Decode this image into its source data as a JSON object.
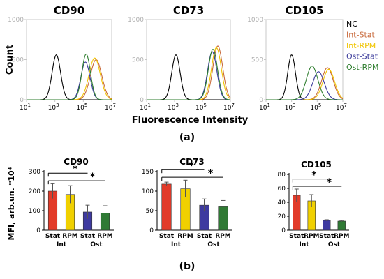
{
  "panel_labels": {
    "a": "(a)",
    "b": "(b)"
  },
  "colors": {
    "NC": "#000000",
    "Int-Stat": "#c8693a",
    "Int-RPM": "#f0c400",
    "Ost-Stat": "#3a3a9a",
    "Ost-RPM": "#2e7d2e",
    "bar_int_stat": "#e23b2a",
    "bar_int_rpm": "#f0d000",
    "bar_ost_stat": "#3e3aa0",
    "bar_ost_rpm": "#2f7a34"
  },
  "legend": [
    "NC",
    "Int-Stat",
    "Int-RPM",
    "Ost-Stat",
    "Ost-RPM"
  ],
  "chart_data": [
    {
      "type": "line",
      "title": "CD90",
      "xlabel": "",
      "ylabel": "Count",
      "xscale": "log",
      "xlim": [
        1,
        7
      ],
      "ylim": [
        0,
        1000
      ],
      "xticks": [
        {
          "b": "10",
          "e": "1"
        },
        {
          "b": "10",
          "e": "3"
        },
        {
          "b": "10",
          "e": "5"
        },
        {
          "b": "10",
          "e": "7"
        }
      ],
      "yticks": [
        "0",
        "500",
        "1000"
      ],
      "series": [
        {
          "name": "NC",
          "mu": 3.1,
          "sigma": 0.3,
          "peak": 560
        },
        {
          "name": "Int-Stat",
          "mu": 5.9,
          "sigma": 0.4,
          "peak": 500
        },
        {
          "name": "Int-RPM",
          "mu": 5.8,
          "sigma": 0.4,
          "peak": 520
        },
        {
          "name": "Ost-Stat",
          "mu": 5.15,
          "sigma": 0.32,
          "peak": 470
        },
        {
          "name": "Ost-RPM",
          "mu": 5.2,
          "sigma": 0.3,
          "peak": 570
        }
      ]
    },
    {
      "type": "line",
      "title": "CD73",
      "xlabel": "Fluorescence Intensity",
      "ylabel": "",
      "xscale": "log",
      "xlim": [
        1,
        7
      ],
      "ylim": [
        0,
        1000
      ],
      "xticks": [
        {
          "b": "10",
          "e": "1"
        },
        {
          "b": "10",
          "e": "3"
        },
        {
          "b": "10",
          "e": "5"
        },
        {
          "b": "10",
          "e": "7"
        }
      ],
      "yticks": [
        "0",
        "500",
        "1000"
      ],
      "series": [
        {
          "name": "NC",
          "mu": 3.1,
          "sigma": 0.3,
          "peak": 560
        },
        {
          "name": "Int-Stat",
          "mu": 6.1,
          "sigma": 0.35,
          "peak": 670
        },
        {
          "name": "Int-RPM",
          "mu": 6.0,
          "sigma": 0.35,
          "peak": 650
        },
        {
          "name": "Ost-Stat",
          "mu": 5.7,
          "sigma": 0.33,
          "peak": 600
        },
        {
          "name": "Ost-RPM",
          "mu": 5.75,
          "sigma": 0.33,
          "peak": 630
        }
      ]
    },
    {
      "type": "line",
      "title": "CD105",
      "xlabel": "",
      "ylabel": "",
      "xscale": "log",
      "xlim": [
        1,
        7
      ],
      "ylim": [
        0,
        1000
      ],
      "xticks": [
        {
          "b": "10",
          "e": "1"
        },
        {
          "b": "10",
          "e": "3"
        },
        {
          "b": "10",
          "e": "5"
        },
        {
          "b": "10",
          "e": "7"
        }
      ],
      "yticks": [
        "0",
        "500",
        "1000"
      ],
      "series": [
        {
          "name": "NC",
          "mu": 3.0,
          "sigma": 0.3,
          "peak": 560
        },
        {
          "name": "Int-Stat",
          "mu": 5.8,
          "sigma": 0.45,
          "peak": 400
        },
        {
          "name": "Int-RPM",
          "mu": 5.9,
          "sigma": 0.45,
          "peak": 380
        },
        {
          "name": "Ost-Stat",
          "mu": 5.1,
          "sigma": 0.45,
          "peak": 350
        },
        {
          "name": "Ost-RPM",
          "mu": 4.6,
          "sigma": 0.45,
          "peak": 420
        }
      ]
    },
    {
      "type": "bar",
      "title": "CD90",
      "ylabel": "MFI, arb.un. *10⁴",
      "ylim": [
        0,
        300
      ],
      "yticks": [
        "0",
        "100",
        "200",
        "300"
      ],
      "categories": [
        "Stat",
        "RPM",
        "Stat",
        "RPM"
      ],
      "groups": [
        "Int",
        "Ost"
      ],
      "values": [
        200,
        183,
        93,
        88
      ],
      "errors": [
        38,
        45,
        35,
        37
      ],
      "significance": [
        {
          "from": 0,
          "to": 2,
          "label": "*"
        },
        {
          "from": 0,
          "to": 3,
          "label": "*"
        }
      ]
    },
    {
      "type": "bar",
      "title": "CD73",
      "ylabel": "",
      "ylim": [
        0,
        150
      ],
      "yticks": [
        "0",
        "50",
        "100",
        "150"
      ],
      "categories": [
        "Stat",
        "RPM",
        "Stat",
        "RPM"
      ],
      "groups": [
        "Int",
        "Ost"
      ],
      "values": [
        118,
        106,
        64,
        60
      ],
      "errors": [
        5,
        22,
        16,
        16
      ],
      "significance": [
        {
          "from": 0,
          "to": 2,
          "label": "*"
        },
        {
          "from": 0,
          "to": 3,
          "label": "*"
        }
      ]
    },
    {
      "type": "bar",
      "title": "CD105",
      "ylabel": "",
      "ylim": [
        0,
        80
      ],
      "yticks": [
        "0",
        "20",
        "40",
        "60",
        "80"
      ],
      "categories": [
        "Stat",
        "RPM",
        "Stat",
        "RPM"
      ],
      "groups": [
        "Int",
        "Ost"
      ],
      "values": [
        50,
        42,
        14,
        13
      ],
      "errors": [
        9,
        9,
        1,
        1
      ],
      "significance": [
        {
          "from": 0,
          "to": 2,
          "label": "*"
        },
        {
          "from": 0,
          "to": 3,
          "label": "*"
        }
      ]
    }
  ]
}
